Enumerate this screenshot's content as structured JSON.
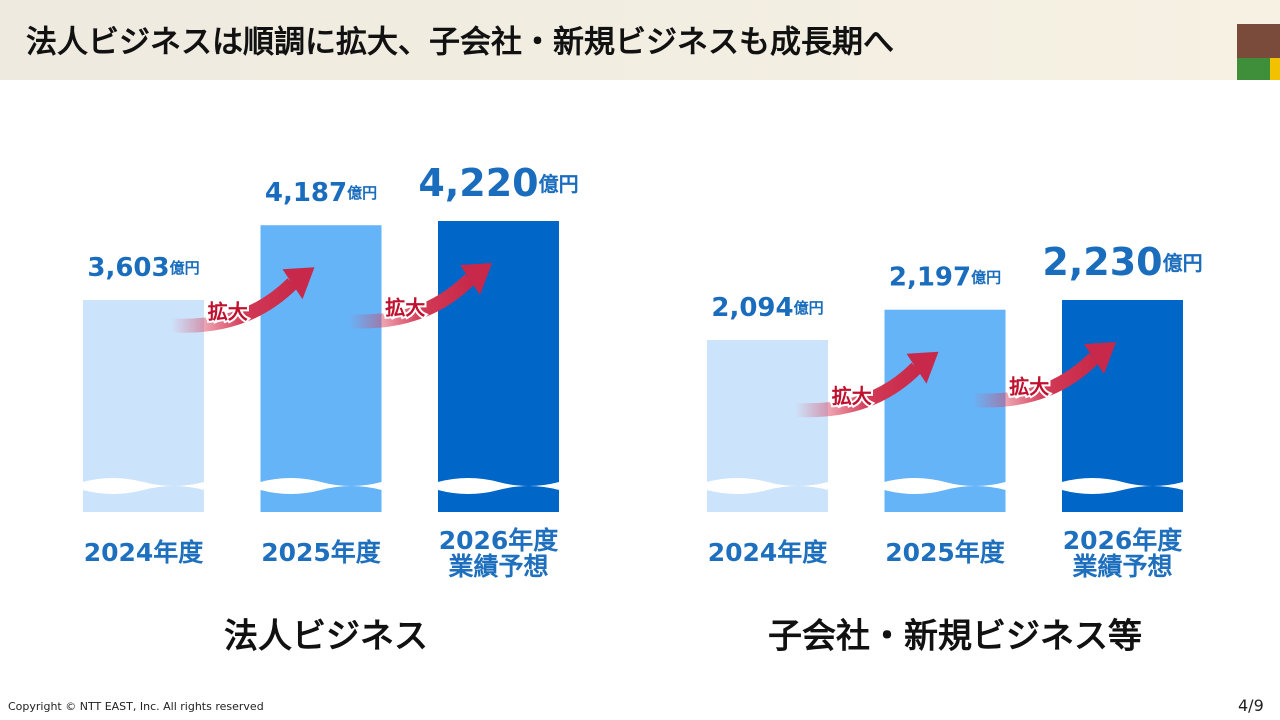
{
  "title": "法人ビジネスは順調に拡大、子会社・新規ビジネスも成長期へ",
  "footer": {
    "copyright": "Copyright © NTT EAST, Inc. All rights reserved",
    "page": "4/9"
  },
  "chart_data": [
    {
      "type": "bar",
      "title": "法人ビジネス",
      "unit": "億円",
      "categories": [
        "2024年度",
        "2025年度",
        "2026年度\n業績予想"
      ],
      "values": [
        3603,
        4187,
        4220
      ],
      "value_labels": [
        "3,603",
        "4,187",
        "4,220"
      ],
      "colors": [
        "#cce4fb",
        "#66b4f8",
        "#0066c8"
      ],
      "annotations": [
        "拡大",
        "拡大"
      ]
    },
    {
      "type": "bar",
      "title": "子会社・新規ビジネス等",
      "unit": "億円",
      "categories": [
        "2024年度",
        "2025年度",
        "2026年度\n業績予想"
      ],
      "values": [
        2094,
        2197,
        2230
      ],
      "value_labels": [
        "2,094",
        "2,197",
        "2,230"
      ],
      "colors": [
        "#cce4fb",
        "#66b4f8",
        "#0066c8"
      ],
      "annotations": [
        "拡大",
        "拡大"
      ]
    }
  ]
}
